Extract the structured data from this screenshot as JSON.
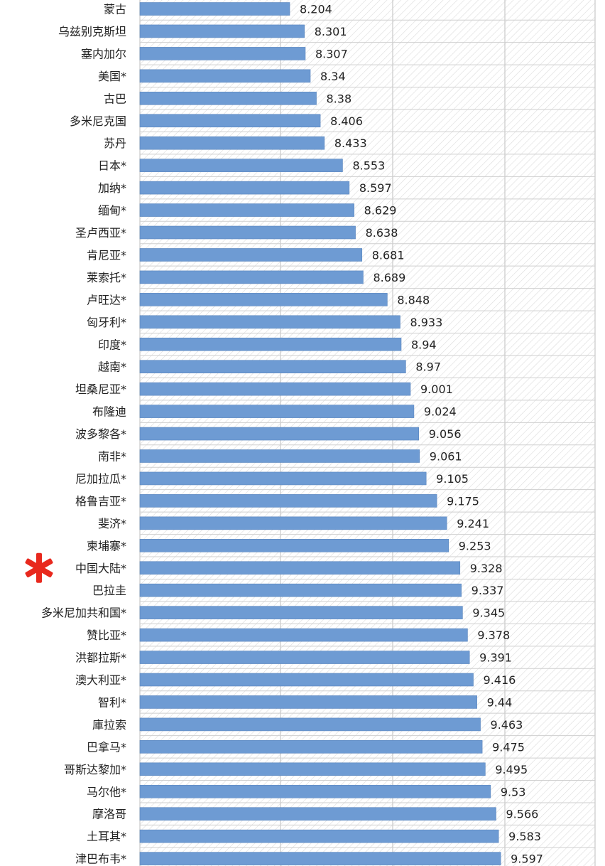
{
  "colors": {
    "bar": "#6e9bd3",
    "bar_edge": "#5a86be",
    "grid": "#cfcfcf",
    "hatch": "#dcdcdc",
    "text": "#222222",
    "marker": "#e8281d"
  },
  "chart_data": {
    "type": "bar",
    "orientation": "horizontal",
    "categories": [
      "蒙古",
      "乌兹别克斯坦",
      "塞内加尔",
      "美国*",
      "古巴",
      "多米尼克国",
      "苏丹",
      "日本*",
      "加纳*",
      "缅甸*",
      "圣卢西亚*",
      "肯尼亚*",
      "莱索托*",
      "卢旺达*",
      "匈牙利*",
      "印度*",
      "越南*",
      "坦桑尼亚*",
      "布隆迪",
      "波多黎各*",
      "南非*",
      "尼加拉瓜*",
      "格鲁吉亚*",
      "斐济*",
      "柬埔寨*",
      "中国大陆*",
      "巴拉圭",
      "多米尼加共和国*",
      "赞比亚*",
      "洪都拉斯*",
      "澳大利亚*",
      "智利*",
      "庫拉索",
      "巴拿马*",
      "哥斯达黎加*",
      "马尔他*",
      "摩洛哥",
      "土耳其*",
      "津巴布韦*"
    ],
    "values": [
      8.204,
      8.301,
      8.307,
      8.34,
      8.38,
      8.406,
      8.433,
      8.553,
      8.597,
      8.629,
      8.638,
      8.681,
      8.689,
      8.848,
      8.933,
      8.94,
      8.97,
      9.001,
      9.024,
      9.056,
      9.061,
      9.105,
      9.175,
      9.241,
      9.253,
      9.328,
      9.337,
      9.345,
      9.378,
      9.391,
      9.416,
      9.44,
      9.463,
      9.475,
      9.495,
      9.53,
      9.566,
      9.583,
      9.597
    ],
    "value_labels": [
      "8.204",
      "8.301",
      "8.307",
      "8.34",
      "8.38",
      "8.406",
      "8.433",
      "8.553",
      "8.597",
      "8.629",
      "8.638",
      "8.681",
      "8.689",
      "8.848",
      "8.933",
      "8.94",
      "8.97",
      "9.001",
      "9.024",
      "9.056",
      "9.061",
      "9.105",
      "9.175",
      "9.241",
      "9.253",
      "9.328",
      "9.337",
      "9.345",
      "9.378",
      "9.391",
      "9.416",
      "9.44",
      "9.463",
      "9.475",
      "9.495",
      "9.53",
      "9.566",
      "9.583",
      "9.597"
    ],
    "highlight_category": "中国大陆*",
    "highlight_icon": "red-asterisk-icon",
    "grid": true,
    "background_pattern": "diagonal-hatch"
  }
}
